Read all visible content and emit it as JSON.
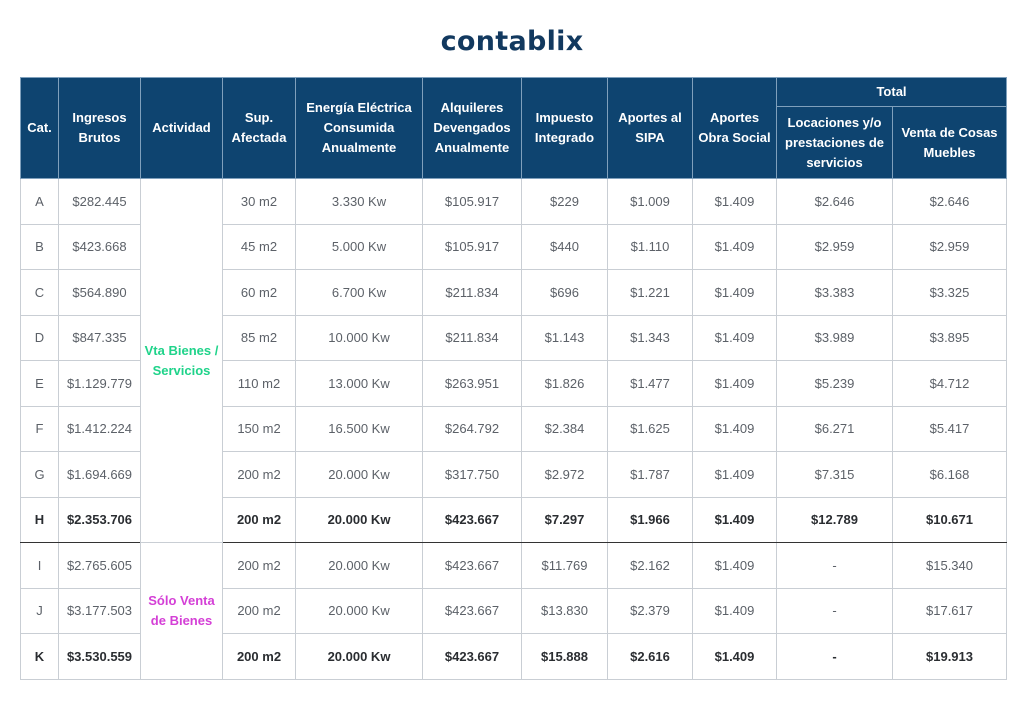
{
  "brand": {
    "logo_text": "contablix",
    "logo_color": "#12395f"
  },
  "colors": {
    "header_bg": "#0e4470",
    "actividad_1": "#1fd38a",
    "actividad_2": "#d43fd6"
  },
  "table": {
    "headers": {
      "cat": "Cat.",
      "ingresos": "Ingresos Brutos",
      "actividad": "Actividad",
      "sup": "Sup. Afectada",
      "energia": "Energía Eléctrica Consumida Anualmente",
      "alquileres": "Alquileres Devengados Anualmente",
      "impuesto": "Impuesto Integrado",
      "sipa": "Aportes al SIPA",
      "obra": "Aportes Obra Social",
      "total": "Total",
      "locaciones": "Locaciones y/o prestaciones de servicios",
      "venta": "Venta de Cosas Muebles"
    },
    "actividades": [
      "Vta Bienes / Servicios",
      "Sólo Venta de Bienes"
    ],
    "rows": [
      {
        "cat": "A",
        "ingresos": "$282.445",
        "sup": "30 m2",
        "energia": "3.330 Kw",
        "alquileres": "$105.917",
        "impuesto": "$229",
        "sipa": "$1.009",
        "obra": "$1.409",
        "locaciones": "$2.646",
        "venta": "$2.646"
      },
      {
        "cat": "B",
        "ingresos": "$423.668",
        "sup": "45 m2",
        "energia": "5.000 Kw",
        "alquileres": "$105.917",
        "impuesto": "$440",
        "sipa": "$1.110",
        "obra": "$1.409",
        "locaciones": "$2.959",
        "venta": "$2.959"
      },
      {
        "cat": "C",
        "ingresos": "$564.890",
        "sup": "60 m2",
        "energia": "6.700 Kw",
        "alquileres": "$211.834",
        "impuesto": "$696",
        "sipa": "$1.221",
        "obra": "$1.409",
        "locaciones": "$3.383",
        "venta": "$3.325"
      },
      {
        "cat": "D",
        "ingresos": "$847.335",
        "sup": "85 m2",
        "energia": "10.000 Kw",
        "alquileres": "$211.834",
        "impuesto": "$1.143",
        "sipa": "$1.343",
        "obra": "$1.409",
        "locaciones": "$3.989",
        "venta": "$3.895"
      },
      {
        "cat": "E",
        "ingresos": "$1.129.779",
        "sup": "110 m2",
        "energia": "13.000 Kw",
        "alquileres": "$263.951",
        "impuesto": "$1.826",
        "sipa": "$1.477",
        "obra": "$1.409",
        "locaciones": "$5.239",
        "venta": "$4.712"
      },
      {
        "cat": "F",
        "ingresos": "$1.412.224",
        "sup": "150 m2",
        "energia": "16.500 Kw",
        "alquileres": "$264.792",
        "impuesto": "$2.384",
        "sipa": "$1.625",
        "obra": "$1.409",
        "locaciones": "$6.271",
        "venta": "$5.417"
      },
      {
        "cat": "G",
        "ingresos": "$1.694.669",
        "sup": "200 m2",
        "energia": "20.000 Kw",
        "alquileres": "$317.750",
        "impuesto": "$2.972",
        "sipa": "$1.787",
        "obra": "$1.409",
        "locaciones": "$7.315",
        "venta": "$6.168"
      },
      {
        "cat": "H",
        "ingresos": "$2.353.706",
        "sup": "200 m2",
        "energia": "20.000 Kw",
        "alquileres": "$423.667",
        "impuesto": "$7.297",
        "sipa": "$1.966",
        "obra": "$1.409",
        "locaciones": "$12.789",
        "venta": "$10.671"
      },
      {
        "cat": "I",
        "ingresos": "$2.765.605",
        "sup": "200 m2",
        "energia": "20.000 Kw",
        "alquileres": "$423.667",
        "impuesto": "$11.769",
        "sipa": "$2.162",
        "obra": "$1.409",
        "locaciones": "-",
        "venta": "$15.340"
      },
      {
        "cat": "J",
        "ingresos": "$3.177.503",
        "sup": "200 m2",
        "energia": "20.000 Kw",
        "alquileres": "$423.667",
        "impuesto": "$13.830",
        "sipa": "$2.379",
        "obra": "$1.409",
        "locaciones": "-",
        "venta": "$17.617"
      },
      {
        "cat": "K",
        "ingresos": "$3.530.559",
        "sup": "200 m2",
        "energia": "20.000 Kw",
        "alquileres": "$423.667",
        "impuesto": "$15.888",
        "sipa": "$2.616",
        "obra": "$1.409",
        "locaciones": "-",
        "venta": "$19.913"
      }
    ]
  }
}
